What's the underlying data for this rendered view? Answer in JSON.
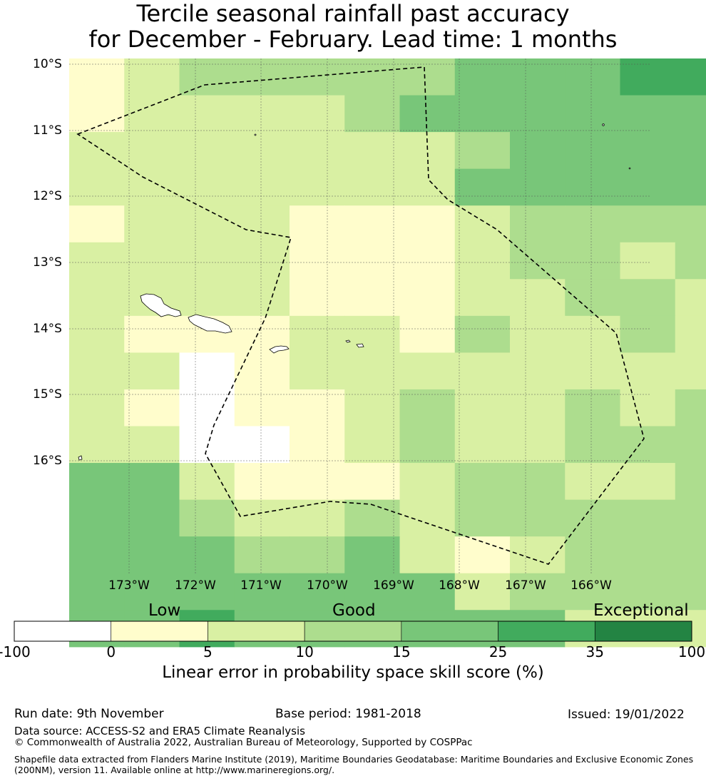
{
  "title": {
    "line1": "Tercile seasonal rainfall past accuracy",
    "line2": "for December - February. Lead time: 1 months"
  },
  "map": {
    "lat_labels": [
      "10°S",
      "11°S",
      "12°S",
      "13°S",
      "14°S",
      "15°S",
      "16°S"
    ],
    "lon_labels": [
      "173°W",
      "172°W",
      "171°W",
      "170°W",
      "169°W",
      "168°W",
      "167°W",
      "166°W"
    ],
    "grid_classes": [
      [
        1,
        2,
        3,
        3,
        3,
        3,
        3,
        4,
        4,
        4,
        5,
        5
      ],
      [
        1,
        2,
        2,
        2,
        2,
        3,
        4,
        4,
        4,
        4,
        4,
        4
      ],
      [
        2,
        2,
        2,
        2,
        2,
        2,
        2,
        3,
        4,
        4,
        4,
        4
      ],
      [
        2,
        2,
        2,
        2,
        2,
        2,
        2,
        4,
        4,
        4,
        4,
        4
      ],
      [
        1,
        2,
        2,
        2,
        1,
        1,
        1,
        2,
        3,
        3,
        3,
        3
      ],
      [
        2,
        2,
        2,
        2,
        1,
        1,
        1,
        2,
        3,
        3,
        2,
        3
      ],
      [
        2,
        2,
        2,
        2,
        1,
        1,
        1,
        2,
        2,
        3,
        3,
        2
      ],
      [
        2,
        1,
        1,
        1,
        2,
        2,
        1,
        3,
        2,
        2,
        3,
        2
      ],
      [
        2,
        2,
        0,
        1,
        2,
        2,
        2,
        2,
        2,
        2,
        2,
        2
      ],
      [
        2,
        1,
        0,
        1,
        1,
        2,
        3,
        2,
        2,
        3,
        2,
        3
      ],
      [
        2,
        2,
        0,
        0,
        1,
        2,
        3,
        2,
        2,
        3,
        3,
        3
      ],
      [
        4,
        4,
        2,
        1,
        1,
        1,
        2,
        3,
        3,
        2,
        2,
        3
      ],
      [
        4,
        4,
        3,
        2,
        2,
        3,
        2,
        3,
        3,
        3,
        3,
        3
      ],
      [
        4,
        4,
        4,
        3,
        3,
        4,
        2,
        1,
        2,
        3,
        3,
        3
      ],
      [
        4,
        4,
        4,
        4,
        4,
        4,
        4,
        2,
        3,
        3,
        3,
        3
      ],
      [
        4,
        4,
        5,
        4,
        4,
        4,
        4,
        4,
        4,
        2,
        2,
        2
      ]
    ]
  },
  "colorbar": {
    "word_low": "Low",
    "word_good": "Good",
    "word_exceptional": "Exceptional",
    "colors": [
      "#ffffff",
      "#fffdcc",
      "#d9f0a3",
      "#addd8e",
      "#78c679",
      "#41ab5d",
      "#238443"
    ],
    "ticks": [
      "-100",
      "0",
      "5",
      "10",
      "15",
      "25",
      "35",
      "100"
    ],
    "label": "Linear error in probability space skill score (%)"
  },
  "footer": {
    "run_date": "Run date: 9th November",
    "base_period": "Base period: 1981-2018",
    "issued": "Issued: 19/01/2022",
    "data_source": "Data source: ACCESS-S2 and ERA5 Climate Reanalysis",
    "copyright": "© Commonwealth of Australia 2022, Australian Bureau of Meteorology, Supported by COSPPac",
    "shapefile_line1": "Shapefile data extracted from Flanders Marine Institute (2019), Maritime Boundaries Geodatabase: Maritime Boundaries and Exclusive Economic Zones",
    "shapefile_line2": "(200NM), version 11. Available online at http://www.marineregions.org/."
  }
}
